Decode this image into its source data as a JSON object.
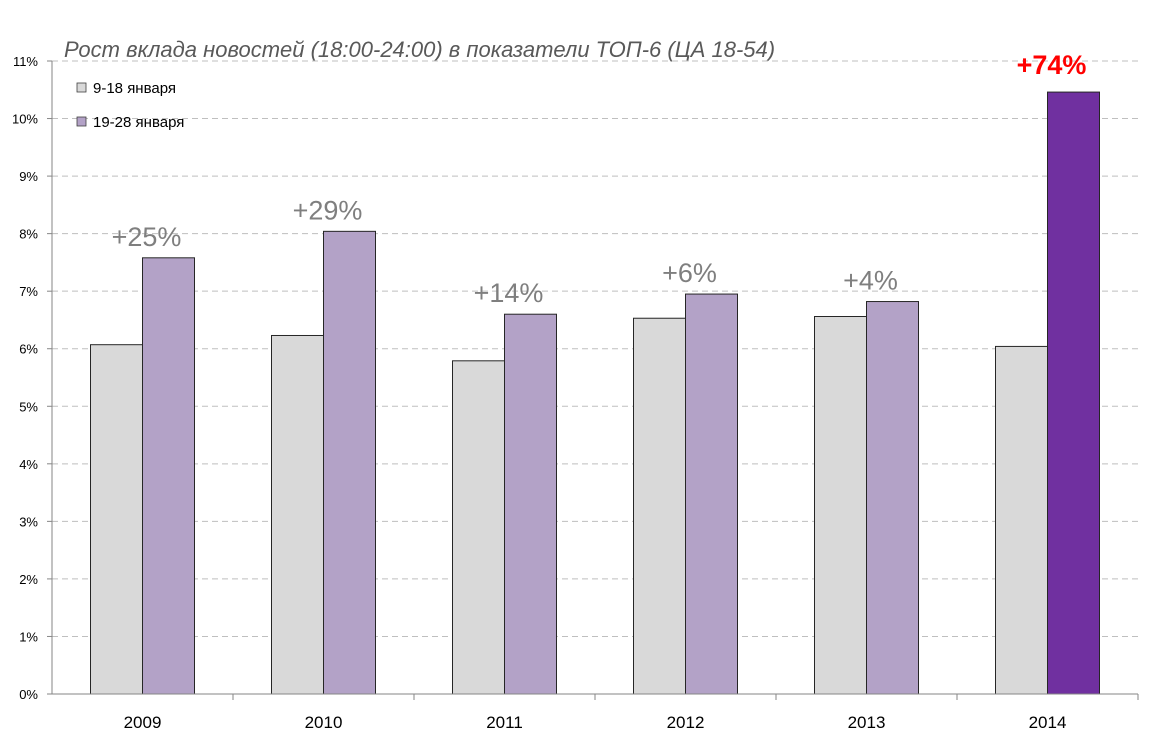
{
  "chart_data": {
    "type": "bar",
    "title": "Рост вклада новостей (18:00-24:00) в показатели ТОП-6 (ЦА 18-54)",
    "xlabel": "",
    "ylabel": "",
    "categories": [
      "2009",
      "2010",
      "2011",
      "2012",
      "2013",
      "2014"
    ],
    "series": [
      {
        "name": "9-18 января",
        "values": [
          6.07,
          6.23,
          5.79,
          6.53,
          6.56,
          6.04
        ],
        "color": "#d9d9d9"
      },
      {
        "name": "19-28 января",
        "values": [
          7.58,
          8.04,
          6.6,
          6.95,
          6.82,
          10.46
        ],
        "color": "#b3a2c7",
        "highlight_color": "#7030a0"
      }
    ],
    "annotations": [
      "+25%",
      "+29%",
      "+14%",
      "+6%",
      "+4%",
      "+74%"
    ],
    "highlight_index": 5,
    "ylim": [
      0,
      11
    ],
    "yticks": [
      "0%",
      "1%",
      "2%",
      "3%",
      "4%",
      "5%",
      "6%",
      "7%",
      "8%",
      "9%",
      "10%",
      "11%"
    ],
    "grid": true,
    "legend_position": "top-left"
  }
}
